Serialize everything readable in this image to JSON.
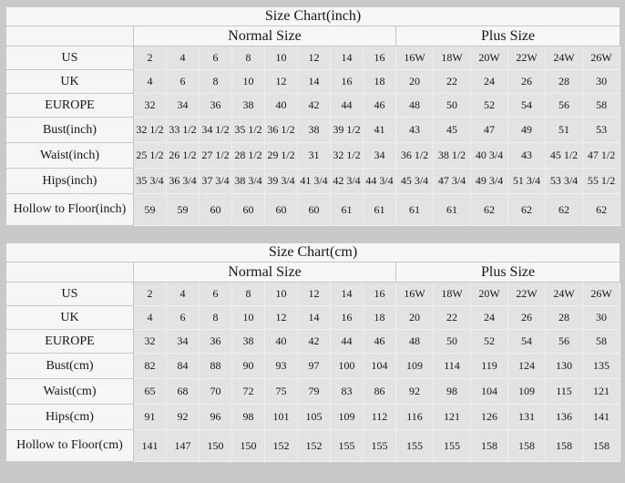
{
  "colors": {
    "page_background": "#c9c9c9",
    "panel_background": "#f7f7f7",
    "data_cell_background": "#e3e3e3",
    "grid_line": "#c6c6c6"
  },
  "chart_data": [
    {
      "type": "table",
      "title": "Size Chart(inch)",
      "column_groups": [
        {
          "label": "Normal Size",
          "span": 8
        },
        {
          "label": "Plus Size",
          "span": 6
        }
      ],
      "rows": [
        {
          "label": "US",
          "normal": [
            "2",
            "4",
            "6",
            "8",
            "10",
            "12",
            "14",
            "16"
          ],
          "plus": [
            "16W",
            "18W",
            "20W",
            "22W",
            "24W",
            "26W"
          ]
        },
        {
          "label": "UK",
          "normal": [
            "4",
            "6",
            "8",
            "10",
            "12",
            "14",
            "16",
            "18"
          ],
          "plus": [
            "20",
            "22",
            "24",
            "26",
            "28",
            "30"
          ]
        },
        {
          "label": "EUROPE",
          "normal": [
            "32",
            "34",
            "36",
            "38",
            "40",
            "42",
            "44",
            "46"
          ],
          "plus": [
            "48",
            "50",
            "52",
            "54",
            "56",
            "58"
          ]
        },
        {
          "label": "Bust(inch)",
          "normal": [
            "32 1/2",
            "33 1/2",
            "34 1/2",
            "35 1/2",
            "36 1/2",
            "38",
            "39 1/2",
            "41"
          ],
          "plus": [
            "43",
            "45",
            "47",
            "49",
            "51",
            "53"
          ]
        },
        {
          "label": "Waist(inch)",
          "normal": [
            "25 1/2",
            "26 1/2",
            "27 1/2",
            "28 1/2",
            "29 1/2",
            "31",
            "32 1/2",
            "34"
          ],
          "plus": [
            "36 1/2",
            "38 1/2",
            "40 3/4",
            "43",
            "45 1/2",
            "47 1/2"
          ]
        },
        {
          "label": "Hips(inch)",
          "normal": [
            "35 3/4",
            "36 3/4",
            "37 3/4",
            "38 3/4",
            "39 3/4",
            "41 3/4",
            "42 3/4",
            "44 3/4"
          ],
          "plus": [
            "45 3/4",
            "47 3/4",
            "49 3/4",
            "51 3/4",
            "53 3/4",
            "55 1/2"
          ]
        },
        {
          "label": "Hollow to Floor(inch)",
          "normal": [
            "59",
            "59",
            "60",
            "60",
            "60",
            "60",
            "61",
            "61"
          ],
          "plus": [
            "61",
            "61",
            "62",
            "62",
            "62",
            "62"
          ]
        }
      ]
    },
    {
      "type": "table",
      "title": "Size Chart(cm)",
      "column_groups": [
        {
          "label": "Normal Size",
          "span": 8
        },
        {
          "label": "Plus Size",
          "span": 6
        }
      ],
      "rows": [
        {
          "label": "US",
          "normal": [
            "2",
            "4",
            "6",
            "8",
            "10",
            "12",
            "14",
            "16"
          ],
          "plus": [
            "16W",
            "18W",
            "20W",
            "22W",
            "24W",
            "26W"
          ]
        },
        {
          "label": "UK",
          "normal": [
            "4",
            "6",
            "8",
            "10",
            "12",
            "14",
            "16",
            "18"
          ],
          "plus": [
            "20",
            "22",
            "24",
            "26",
            "28",
            "30"
          ]
        },
        {
          "label": "EUROPE",
          "normal": [
            "32",
            "34",
            "36",
            "38",
            "40",
            "42",
            "44",
            "46"
          ],
          "plus": [
            "48",
            "50",
            "52",
            "54",
            "56",
            "58"
          ]
        },
        {
          "label": "Bust(cm)",
          "normal": [
            "82",
            "84",
            "88",
            "90",
            "93",
            "97",
            "100",
            "104"
          ],
          "plus": [
            "109",
            "114",
            "119",
            "124",
            "130",
            "135"
          ]
        },
        {
          "label": "Waist(cm)",
          "normal": [
            "65",
            "68",
            "70",
            "72",
            "75",
            "79",
            "83",
            "86"
          ],
          "plus": [
            "92",
            "98",
            "104",
            "109",
            "115",
            "121"
          ]
        },
        {
          "label": "Hips(cm)",
          "normal": [
            "91",
            "92",
            "96",
            "98",
            "101",
            "105",
            "109",
            "112"
          ],
          "plus": [
            "116",
            "121",
            "126",
            "131",
            "136",
            "141"
          ]
        },
        {
          "label": "Hollow to Floor(cm)",
          "normal": [
            "141",
            "147",
            "150",
            "150",
            "152",
            "152",
            "155",
            "155"
          ],
          "plus": [
            "155",
            "155",
            "158",
            "158",
            "158",
            "158"
          ]
        }
      ]
    }
  ]
}
